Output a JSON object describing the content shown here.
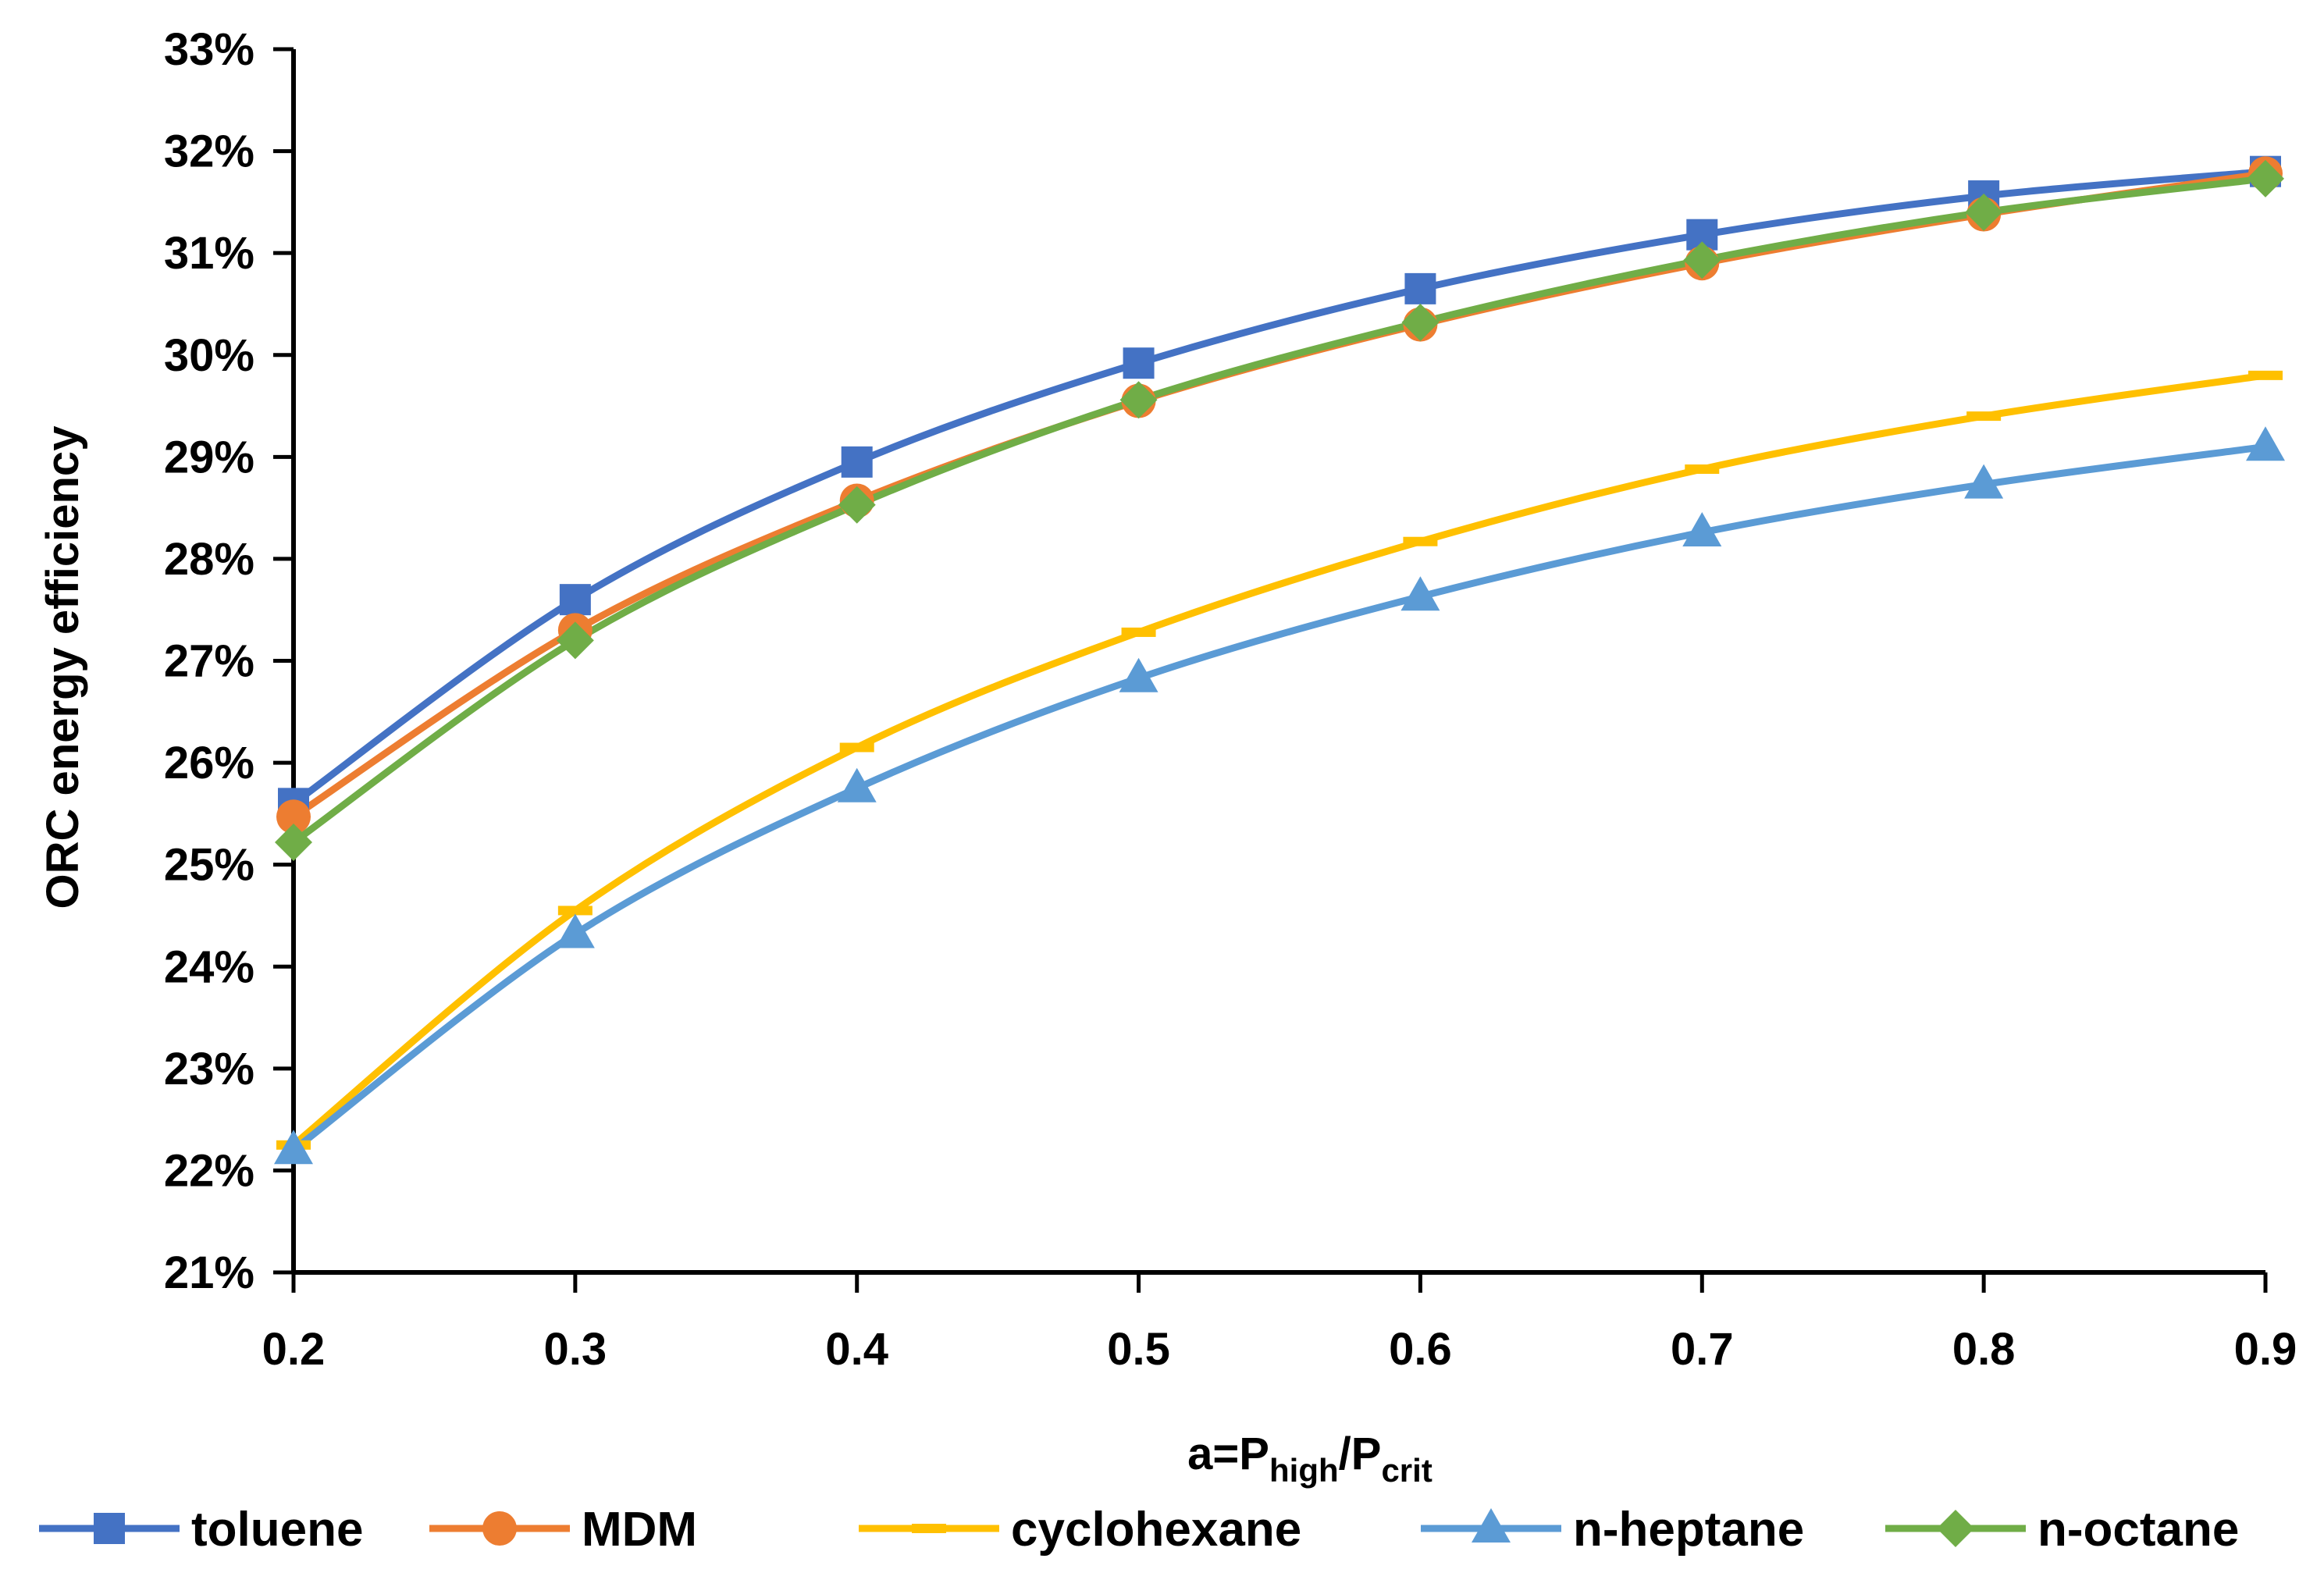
{
  "chart_data": {
    "type": "line",
    "title": "",
    "xlabel": {
      "main": "a=P",
      "sub1": "high",
      "mid": "/P",
      "sub2": "crit"
    },
    "ylabel": "ORC energy efficiency",
    "x": [
      0.2,
      0.3,
      0.4,
      0.5,
      0.6,
      0.7,
      0.8,
      0.9
    ],
    "x_tick_labels": [
      "0.2",
      "0.3",
      "0.4",
      "0.5",
      "0.6",
      "0.7",
      "0.8",
      "0.9"
    ],
    "xlim": [
      0.2,
      0.9
    ],
    "ylim": [
      21,
      33
    ],
    "y_ticks": [
      21,
      22,
      23,
      24,
      25,
      26,
      27,
      28,
      29,
      30,
      31,
      32,
      33
    ],
    "y_tick_labels": [
      "21%",
      "22%",
      "23%",
      "24%",
      "25%",
      "26%",
      "27%",
      "28%",
      "29%",
      "30%",
      "31%",
      "32%",
      "33%"
    ],
    "grid": false,
    "legend_position": "bottom",
    "series": [
      {
        "name": "toluene",
        "color": "#4472C4",
        "marker": "square",
        "values": [
          25.6,
          27.6,
          28.95,
          29.92,
          30.65,
          31.18,
          31.56,
          31.8
        ]
      },
      {
        "name": "MDM",
        "color": "#ED7D31",
        "marker": "circle",
        "values": [
          25.47,
          27.3,
          28.57,
          29.55,
          30.3,
          30.9,
          31.38,
          31.78
        ]
      },
      {
        "name": "cyclohexane",
        "color": "#FFC000",
        "marker": "dash",
        "values": [
          22.25,
          24.55,
          26.15,
          27.28,
          28.17,
          28.88,
          29.4,
          29.8
        ]
      },
      {
        "name": "n-heptane",
        "color": "#5B9BD5",
        "marker": "triangle",
        "values": [
          22.2,
          24.32,
          25.75,
          26.83,
          27.63,
          28.26,
          28.73,
          29.1
        ]
      },
      {
        "name": "n-octane",
        "color": "#70AD47",
        "marker": "diamond",
        "values": [
          25.22,
          27.2,
          28.53,
          29.56,
          30.32,
          30.93,
          31.4,
          31.73
        ]
      }
    ]
  }
}
